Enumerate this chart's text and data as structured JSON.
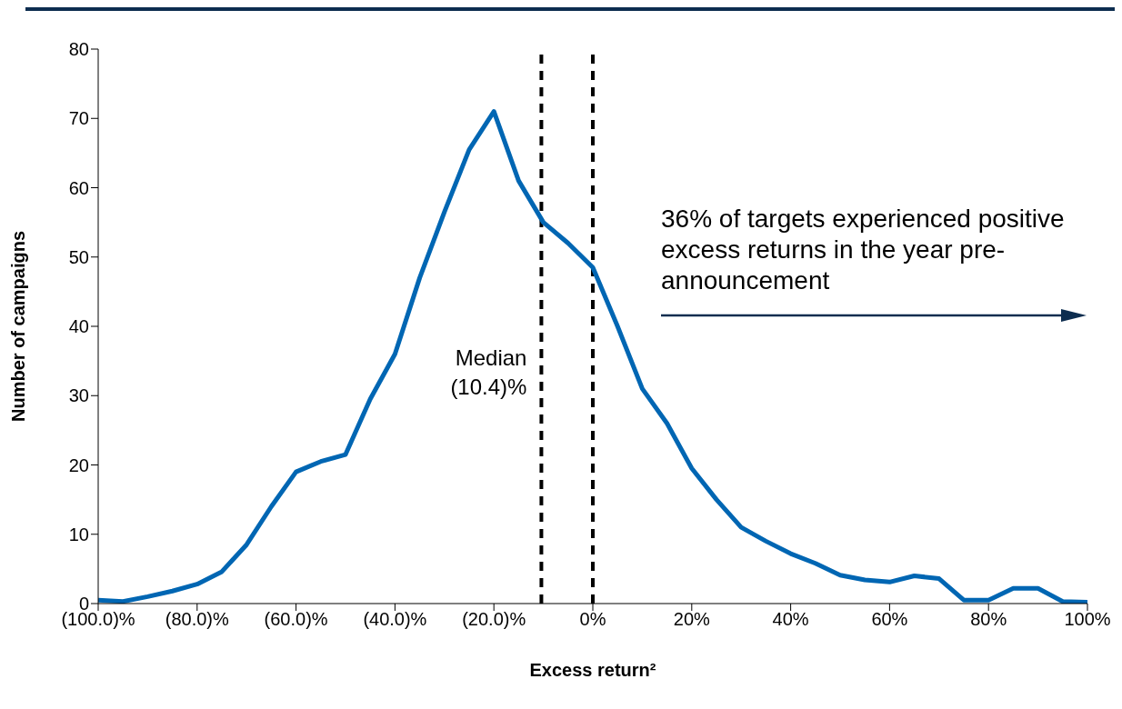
{
  "chart_data": {
    "type": "line",
    "xlabel": "Excess return²",
    "ylabel": "Number of campaigns",
    "x": [
      -100,
      -95,
      -90,
      -85,
      -80,
      -75,
      -70,
      -65,
      -60,
      -55,
      -50,
      -45,
      -40,
      -35,
      -30,
      -25,
      -20,
      -15,
      -10,
      -5,
      0,
      5,
      10,
      15,
      20,
      25,
      30,
      35,
      40,
      45,
      50,
      55,
      60,
      65,
      70,
      75,
      80,
      85,
      90,
      95,
      100
    ],
    "series": [
      {
        "color": "#0066b3",
        "values": [
          0.5,
          0.3,
          1.0,
          1.8,
          2.8,
          4.6,
          8.5,
          14,
          19,
          20.5,
          21.5,
          29.5,
          36,
          47,
          56.5,
          65.5,
          71,
          61,
          55,
          52,
          48.5,
          40,
          31,
          26,
          19.5,
          15,
          11,
          9,
          7.2,
          5.8,
          4.1,
          3.4,
          3.1,
          4.0,
          3.6,
          0.5,
          0.5,
          2.2,
          2.2,
          0.3,
          0.2
        ]
      }
    ],
    "xlim": [
      -100,
      100
    ],
    "xticks": [
      {
        "value": -100,
        "label": "(100.0)%"
      },
      {
        "value": -80,
        "label": "(80.0)%"
      },
      {
        "value": -60,
        "label": "(60.0)%"
      },
      {
        "value": -40,
        "label": "(40.0)%"
      },
      {
        "value": -20,
        "label": "(20.0)%"
      },
      {
        "value": 0,
        "label": "0%"
      },
      {
        "value": 20,
        "label": "20%"
      },
      {
        "value": 40,
        "label": "40%"
      },
      {
        "value": 60,
        "label": "60%"
      },
      {
        "value": 80,
        "label": "80%"
      },
      {
        "value": 100,
        "label": "100%"
      }
    ],
    "ylim": [
      0,
      80
    ],
    "yticks": [
      0,
      10,
      20,
      30,
      40,
      50,
      60,
      70,
      80
    ],
    "grid": false,
    "legend": false,
    "marker": "none",
    "line_style": "solid",
    "ref_lines": [
      {
        "axis": "x",
        "value": -10.4,
        "label": "Median (10.4)%",
        "color": "#000000",
        "line_style": "dashed"
      },
      {
        "axis": "x",
        "value": 0,
        "color": "#000000",
        "line_style": "dashed"
      }
    ],
    "annotations": [
      "36% of targets experienced positive excess returns in the year pre-announcement"
    ]
  }
}
